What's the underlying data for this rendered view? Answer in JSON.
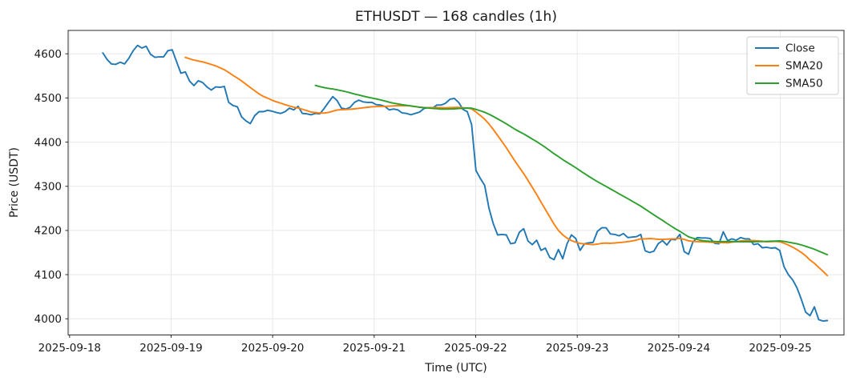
{
  "chart_data": {
    "type": "line",
    "title": "ETHUSDT — 168 candles (1h)",
    "xlabel": "Time (UTC)",
    "ylabel": "Price (USDT)",
    "x_tick_labels": [
      "2025-09-18",
      "2025-09-19",
      "2025-09-20",
      "2025-09-21",
      "2025-09-22",
      "2025-09-23",
      "2025-09-24",
      "2025-09-25"
    ],
    "y_ticks": [
      4000,
      4100,
      4200,
      4300,
      4400,
      4500,
      4600
    ],
    "ylim": [
      3963,
      4653
    ],
    "grid": true,
    "legend_position": "upper right",
    "series": [
      {
        "name": "Close",
        "color": "#1f77b4",
        "kind": "raw"
      },
      {
        "name": "SMA20",
        "color": "#ff7f0e",
        "kind": "sma",
        "window": 20
      },
      {
        "name": "SMA50",
        "color": "#2ca02c",
        "kind": "sma",
        "window": 50
      }
    ],
    "close": [
      4602,
      4587,
      4577,
      4576,
      4581,
      4577,
      4590,
      4607,
      4619,
      4613,
      4617,
      4599,
      4592,
      4593,
      4593,
      4607,
      4609,
      4582,
      4556,
      4559,
      4538,
      4528,
      4539,
      4535,
      4525,
      4518,
      4525,
      4524,
      4526,
      4490,
      4483,
      4480,
      4457,
      4448,
      4442,
      4460,
      4469,
      4469,
      4472,
      4470,
      4467,
      4465,
      4469,
      4477,
      4473,
      4481,
      4465,
      4464,
      4462,
      4465,
      4464,
      4476,
      4490,
      4503,
      4494,
      4477,
      4475,
      4479,
      4490,
      4495,
      4491,
      4490,
      4490,
      4485,
      4484,
      4481,
      4473,
      4475,
      4473,
      4466,
      4465,
      4462,
      4465,
      4468,
      4476,
      4478,
      4477,
      4484,
      4484,
      4488,
      4497,
      4499,
      4490,
      4474,
      4469,
      4440,
      4336,
      4318,
      4302,
      4250,
      4215,
      4190,
      4191,
      4190,
      4170,
      4172,
      4196,
      4204,
      4176,
      4168,
      4178,
      4155,
      4160,
      4139,
      4134,
      4157,
      4136,
      4170,
      4190,
      4182,
      4155,
      4170,
      4172,
      4173,
      4198,
      4206,
      4206,
      4192,
      4191,
      4188,
      4193,
      4184,
      4185,
      4186,
      4191,
      4154,
      4150,
      4153,
      4170,
      4177,
      4167,
      4180,
      4179,
      4191,
      4152,
      4146,
      4174,
      4184,
      4183,
      4183,
      4182,
      4171,
      4170,
      4197,
      4177,
      4181,
      4178,
      4184,
      4181,
      4181,
      4168,
      4170,
      4161,
      4162,
      4160,
      4161,
      4155,
      4118,
      4100,
      4088,
      4070,
      4044,
      4015,
      4007,
      4027,
      3998,
      3995,
      3996
    ]
  }
}
